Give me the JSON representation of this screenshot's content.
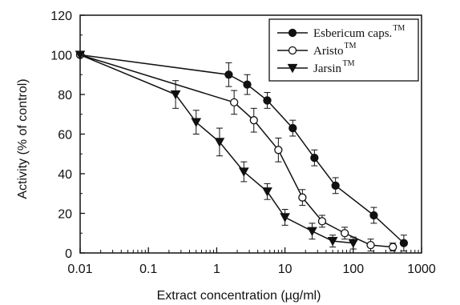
{
  "chart_data": {
    "type": "line",
    "title": "",
    "xlabel": "Extract concentration  (µg/ml)",
    "ylabel": "Activity (% of control)",
    "x_scale": "log",
    "xlim": [
      0.01,
      1000
    ],
    "ylim": [
      0,
      120
    ],
    "x_ticks": [
      0.01,
      0.1,
      1,
      10,
      100,
      1000
    ],
    "x_tick_labels": [
      "0.01",
      "0.1",
      "1",
      "10",
      "100",
      "1000"
    ],
    "y_ticks": [
      0,
      20,
      40,
      60,
      80,
      100,
      120
    ],
    "y_tick_labels": [
      "0",
      "20",
      "40",
      "60",
      "80",
      "100",
      "120"
    ],
    "grid": false,
    "legend_position": "top-right",
    "series": [
      {
        "name": "Esbericum caps.",
        "name_sup": "TM",
        "marker": "circle-filled",
        "x": [
          0.01,
          1.5,
          2.8,
          5.5,
          13,
          27,
          55,
          200,
          550
        ],
        "y": [
          100,
          90,
          85,
          77,
          63,
          48,
          34,
          19,
          5
        ],
        "err": [
          0,
          6,
          5,
          4,
          4,
          4,
          4,
          4,
          4
        ]
      },
      {
        "name": "Aristo",
        "name_sup": "TM",
        "marker": "circle-open",
        "x": [
          0.01,
          1.8,
          3.5,
          8,
          18,
          35,
          75,
          180,
          380
        ],
        "y": [
          100,
          76,
          67,
          52,
          28,
          16,
          10,
          4,
          3
        ],
        "err": [
          0,
          6,
          6,
          6,
          4,
          3,
          3,
          3,
          2
        ]
      },
      {
        "name": "Jarsin",
        "name_sup": "TM",
        "marker": "triangle-down-filled",
        "x": [
          0.01,
          0.25,
          0.5,
          1.1,
          2.5,
          5.5,
          10,
          25,
          50,
          100
        ],
        "y": [
          100,
          80,
          66,
          56,
          41,
          31,
          18,
          11,
          6,
          5
        ],
        "err": [
          0,
          7,
          6,
          7,
          5,
          4,
          4,
          4,
          3,
          3
        ]
      }
    ]
  }
}
